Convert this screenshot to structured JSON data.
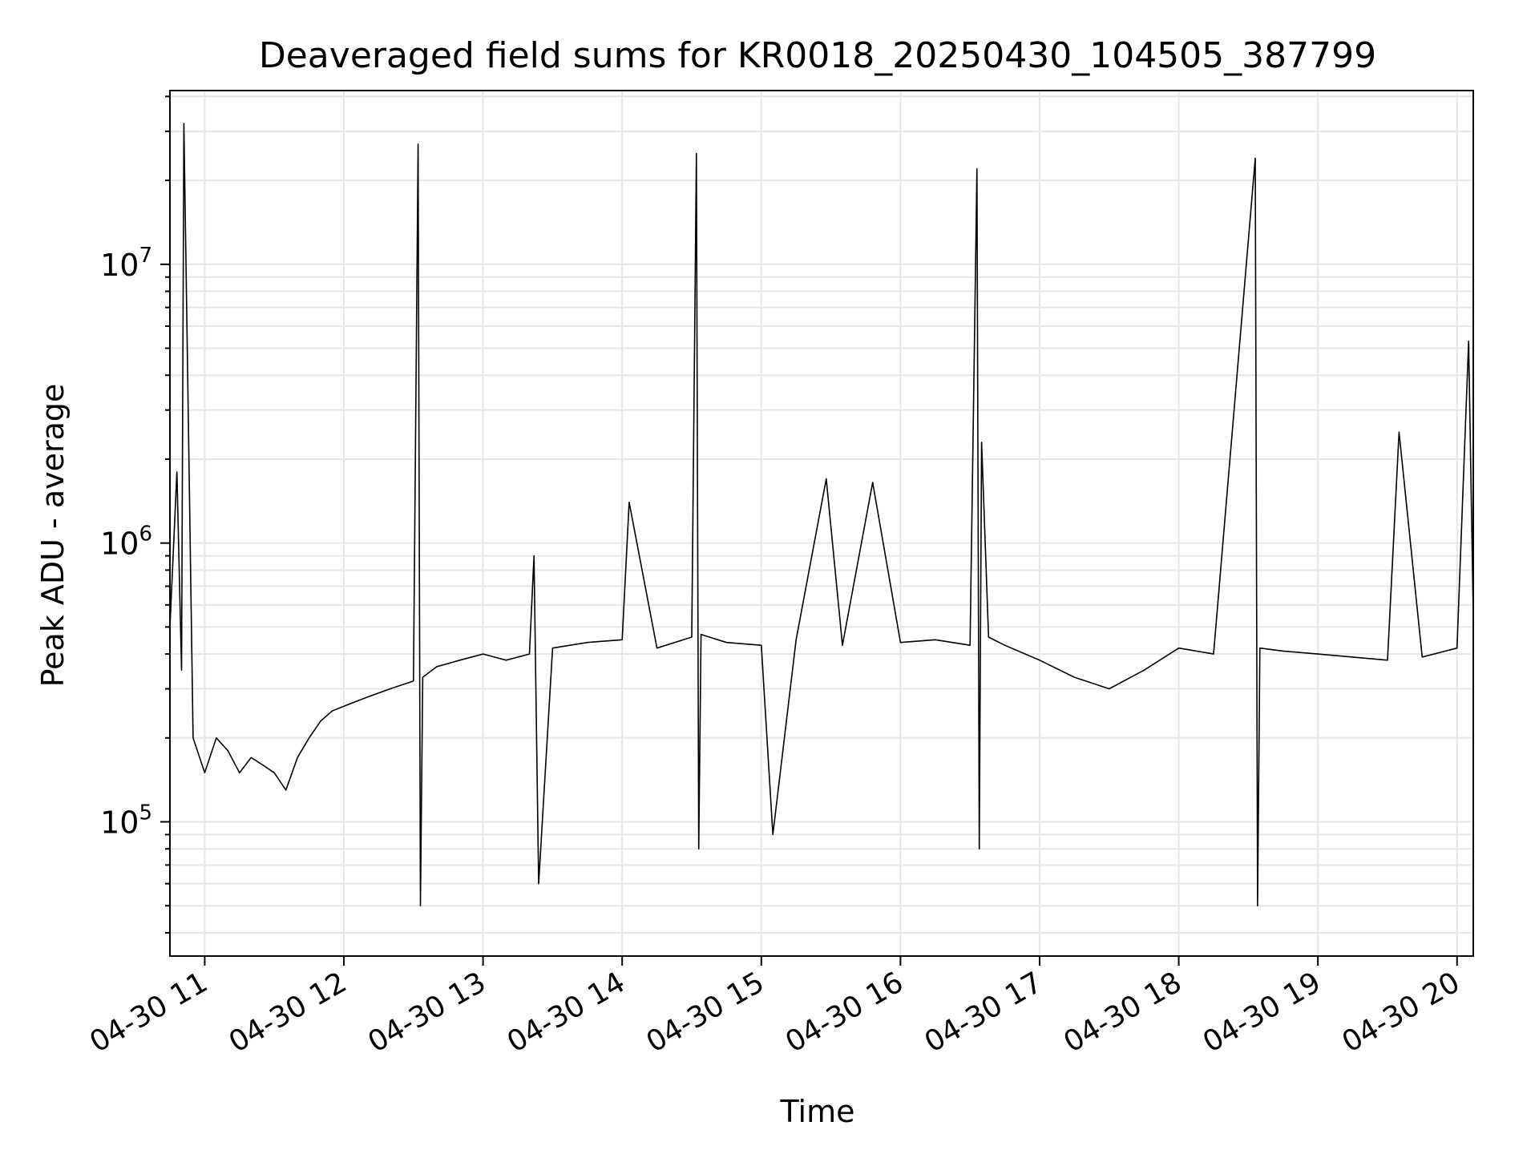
{
  "chart_data": {
    "type": "line",
    "title": "Deaveraged field sums for KR0018_20250430_104505_387799",
    "xlabel": "Time",
    "ylabel": "Peak ADU - average",
    "yscale": "log",
    "xlim": [
      "2025-04-30 10:45",
      "2025-04-30 20:07"
    ],
    "ylim": [
      33000,
      42000000
    ],
    "grid": true,
    "line_color": "#000000",
    "x_ticks": [
      "04-30 11",
      "04-30 12",
      "04-30 13",
      "04-30 14",
      "04-30 15",
      "04-30 16",
      "04-30 17",
      "04-30 18",
      "04-30 19",
      "04-30 20"
    ],
    "y_ticks": [
      {
        "value": 100000,
        "base": "10",
        "exp": "5"
      },
      {
        "value": 1000000,
        "base": "10",
        "exp": "6"
      },
      {
        "value": 10000000,
        "base": "10",
        "exp": "7"
      }
    ],
    "series": [
      {
        "x": [
          "2025-04-30 10:45",
          "2025-04-30 10:48",
          "2025-04-30 10:50",
          "2025-04-30 10:51",
          "2025-04-30 10:52",
          "2025-04-30 10:55",
          "2025-04-30 11:00",
          "2025-04-30 11:05",
          "2025-04-30 11:10",
          "2025-04-30 11:15",
          "2025-04-30 11:20",
          "2025-04-30 11:25",
          "2025-04-30 11:30",
          "2025-04-30 11:35",
          "2025-04-30 11:40",
          "2025-04-30 11:45",
          "2025-04-30 11:50",
          "2025-04-30 11:55",
          "2025-04-30 12:00",
          "2025-04-30 12:10",
          "2025-04-30 12:20",
          "2025-04-30 12:30",
          "2025-04-30 12:32",
          "2025-04-30 12:33",
          "2025-04-30 12:34",
          "2025-04-30 12:40",
          "2025-04-30 12:50",
          "2025-04-30 13:00",
          "2025-04-30 13:10",
          "2025-04-30 13:20",
          "2025-04-30 13:22",
          "2025-04-30 13:24",
          "2025-04-30 13:30",
          "2025-04-30 13:45",
          "2025-04-30 14:00",
          "2025-04-30 14:03",
          "2025-04-30 14:15",
          "2025-04-30 14:30",
          "2025-04-30 14:32",
          "2025-04-30 14:33",
          "2025-04-30 14:34",
          "2025-04-30 14:45",
          "2025-04-30 15:00",
          "2025-04-30 15:05",
          "2025-04-30 15:15",
          "2025-04-30 15:28",
          "2025-04-30 15:35",
          "2025-04-30 15:48",
          "2025-04-30 16:00",
          "2025-04-30 16:15",
          "2025-04-30 16:30",
          "2025-04-30 16:33",
          "2025-04-30 16:34",
          "2025-04-30 16:35",
          "2025-04-30 16:38",
          "2025-04-30 16:45",
          "2025-04-30 17:00",
          "2025-04-30 17:15",
          "2025-04-30 17:30",
          "2025-04-30 17:45",
          "2025-04-30 18:00",
          "2025-04-30 18:15",
          "2025-04-30 18:33",
          "2025-04-30 18:34",
          "2025-04-30 18:35",
          "2025-04-30 18:45",
          "2025-04-30 19:00",
          "2025-04-30 19:15",
          "2025-04-30 19:30",
          "2025-04-30 19:35",
          "2025-04-30 19:45",
          "2025-04-30 20:00",
          "2025-04-30 20:05",
          "2025-04-30 20:07"
        ],
        "y": [
          500000,
          1800000,
          350000,
          32000000,
          9000000,
          200000,
          150000,
          200000,
          180000,
          150000,
          170000,
          160000,
          150000,
          130000,
          170000,
          200000,
          230000,
          250000,
          260000,
          280000,
          300000,
          320000,
          27000000,
          50000,
          330000,
          360000,
          380000,
          400000,
          380000,
          400000,
          900000,
          60000,
          420000,
          440000,
          450000,
          1400000,
          420000,
          460000,
          25000000,
          80000,
          470000,
          440000,
          430000,
          90000,
          450000,
          1700000,
          430000,
          1650000,
          440000,
          450000,
          430000,
          22000000,
          80000,
          2300000,
          460000,
          430000,
          380000,
          330000,
          300000,
          350000,
          420000,
          400000,
          24000000,
          50000,
          420000,
          410000,
          400000,
          390000,
          380000,
          2500000,
          390000,
          420000,
          5300000,
          550000
        ]
      }
    ]
  }
}
